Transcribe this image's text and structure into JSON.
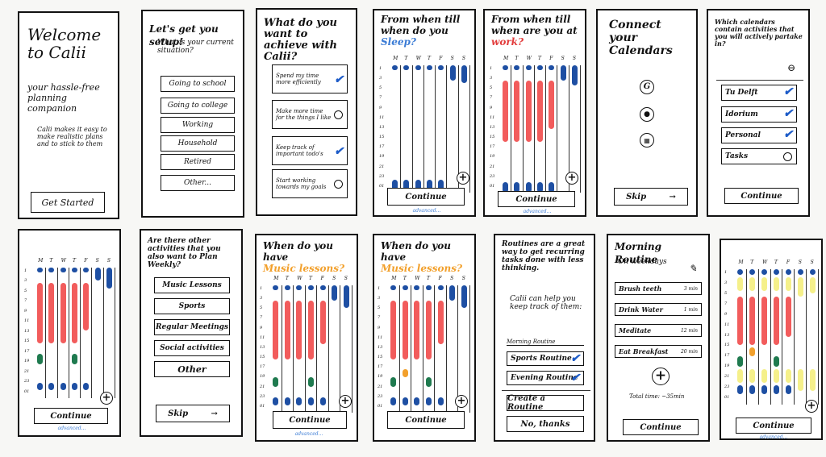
{
  "s1": {
    "title": "Welcome to Calii",
    "subtitle": "your hassle-free planning companion",
    "desc": "Calii makes it easy to make realistic plans and to stick to them",
    "cta": "Get Started"
  },
  "s2": {
    "title": "Let's get you setup!",
    "subtitle": "What is your current situation?",
    "options": [
      "Going to school",
      "Going to college",
      "Working",
      "Household",
      "Retired",
      "Other..."
    ]
  },
  "s3": {
    "title": "What do you want to achieve with Calii?",
    "options": [
      "Spend my time more efficiently",
      "Make more time for the things I like",
      "Keep track of important todo's",
      "Start working towards my goals"
    ],
    "checked": [
      true,
      false,
      true,
      false
    ]
  },
  "s4": {
    "title_pre": "From when till when do you",
    "title_em": "Sleep?",
    "accent": "#3a7bd5",
    "continue": "Continue",
    "advanced": "advanced..."
  },
  "s5": {
    "title_pre": "From when till when are you at",
    "title_em": "work?",
    "accent": "#e23b3b",
    "continue": "Continue",
    "advanced": "advanced..."
  },
  "s6": {
    "title": "Connect your Calendars",
    "icons": [
      "G",
      "",
      ""
    ],
    "skip": "Skip",
    "arrow": "→"
  },
  "s7": {
    "title": "Which calendars contain activities that you will actively partake in?",
    "minus": "⊖",
    "items": [
      "Tu Delft",
      "Idorium",
      "Personal",
      "Tasks"
    ],
    "checked": [
      true,
      true,
      true,
      false
    ],
    "continue": "Continue"
  },
  "s8": {
    "continue": "Continue",
    "advanced": "advanced..."
  },
  "s9": {
    "title": "Are there other activities that you also want to Plan Weekly?",
    "items": [
      "Music Lessons",
      "Sports",
      "Regular Meetings",
      "Social activities",
      "Other"
    ],
    "skip": "Skip",
    "arrow": "→"
  },
  "s10": {
    "title_pre": "When do you have",
    "title_em": "Music lessons?",
    "accent": "#f2a02c",
    "continue": "Continue",
    "advanced": "advanced..."
  },
  "s11": {
    "title_pre": "When do you have",
    "title_em": "Music lessons?",
    "accent": "#f2a02c",
    "continue": "Continue"
  },
  "s12": {
    "title": "Routines are a great way to get recurring tasks done with less thinking.",
    "subtitle": "Calii can help you keep track of them:",
    "partial": "Morning Routine",
    "items": [
      "Sports Routine",
      "Evening Routine"
    ],
    "create": "Create a Routine",
    "no": "No, thanks"
  },
  "s13": {
    "title": "Morning Routine",
    "sub": "On weekdays",
    "tasks": [
      [
        "Brush teeth",
        "3 min"
      ],
      [
        "Drink Water",
        "1 min"
      ],
      [
        "Meditate",
        "12 min"
      ],
      [
        "Eat Breakfast",
        "20 min"
      ]
    ],
    "total": "Total time: ~35min",
    "continue": "Continue"
  },
  "s14": {
    "continue": "Continue",
    "advanced": "advanced..."
  },
  "days": [
    "M",
    "T",
    "W",
    "T",
    "F",
    "S",
    "S"
  ],
  "hours": [
    "1",
    "3",
    "5",
    "7",
    "9",
    "11",
    "13",
    "15",
    "17",
    "19",
    "21",
    "23",
    "01"
  ]
}
